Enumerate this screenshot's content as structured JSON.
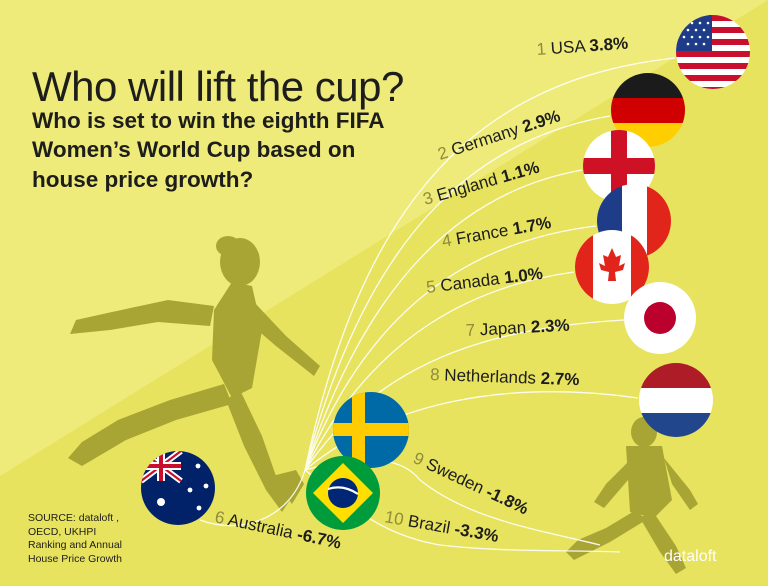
{
  "title": "Who will lift the cup?",
  "subtitle": "Who is set to win the eighth FIFA Women’s World Cup based on house price growth?",
  "source_lines": [
    "SOURCE: dataloft ,",
    "OECD, UKHPI",
    "Ranking and Annual",
    "House Price Growth"
  ],
  "brand": "dataloft",
  "colors": {
    "background": "#e7e35f",
    "background_light": "#eeeb7a",
    "silhouette": "#a9a534",
    "lines": "#ffffff",
    "text": "#1d1d1b",
    "rank_text": "#908b3a"
  },
  "chart_data": {
    "type": "other",
    "title": "Who will lift the cup?",
    "subtitle": "Who is set to win the eighth FIFA Women’s World Cup based on house price growth?",
    "unit": "%",
    "items": [
      {
        "rank": 1,
        "country": "USA",
        "label": "3.8%",
        "value": 3.8,
        "flag": "usa-flag"
      },
      {
        "rank": 2,
        "country": "Germany",
        "label": "2.9%",
        "value": 2.9,
        "flag": "germany-flag"
      },
      {
        "rank": 3,
        "country": "England",
        "label": "1.1%",
        "value": 1.1,
        "flag": "england-flag"
      },
      {
        "rank": 4,
        "country": "France",
        "label": "1.7%",
        "value": 1.7,
        "flag": "france-flag"
      },
      {
        "rank": 5,
        "country": "Canada",
        "label": "1.0%",
        "value": 1.0,
        "flag": "canada-flag"
      },
      {
        "rank": 7,
        "country": "Japan",
        "label": "2.3%",
        "value": 2.3,
        "flag": "japan-flag"
      },
      {
        "rank": 8,
        "country": "Netherlands",
        "label": "2.7%",
        "value": 2.7,
        "flag": "netherlands-flag"
      },
      {
        "rank": 9,
        "country": "Sweden",
        "label": "-1.8%",
        "value": -1.8,
        "flag": "sweden-flag"
      },
      {
        "rank": 10,
        "country": "Brazil",
        "label": "-3.3%",
        "value": -3.3,
        "flag": "brazil-flag"
      },
      {
        "rank": 6,
        "country": "Australia",
        "label": "-6.7%",
        "value": -6.7,
        "flag": "australia-flag"
      }
    ]
  }
}
